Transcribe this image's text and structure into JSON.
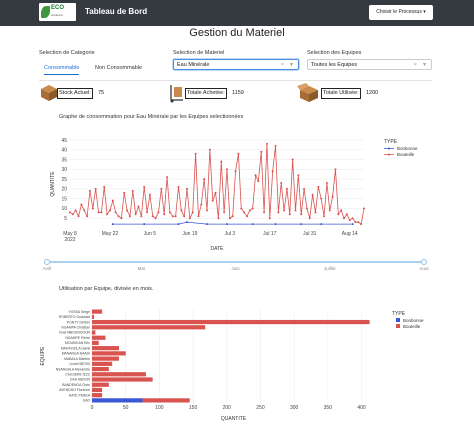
{
  "navbar": {
    "brand": "Tableau de Bord",
    "logo_text": "ECO",
    "logo_subtext": "solutions",
    "process_button": "Choisir le Processus"
  },
  "page_title": "Gestion du Materiel",
  "category": {
    "label": "Selection de Categorie",
    "tabs": [
      "Consommable",
      "Non Consommable"
    ],
    "active_tab": "Consommable"
  },
  "materiel": {
    "label": "Selection de Materiel",
    "value": "Eau Minérale"
  },
  "equipes": {
    "label": "Selection des Equipes",
    "value": "Toutes les Equipes"
  },
  "stats": [
    {
      "label": "Stock Actuel:",
      "value": "75"
    },
    {
      "label": "Totale Achetée:",
      "value": "1159"
    },
    {
      "label": "Totale Utilisée:",
      "value": "1200"
    }
  ],
  "chart_data": [
    {
      "type": "line",
      "title": "Graphe de consommation pour Eau Minérale par les Equipes selectionnées",
      "xlabel": "DATE",
      "ylabel": "QUANTITE",
      "x_tick_labels": [
        "May 8\n2022",
        "May 22",
        "Jun 5",
        "Jun 19",
        "Jul 3",
        "Jul 17",
        "Jul 31",
        "Aug 14"
      ],
      "x_range_days": [
        0,
        103
      ],
      "ylim": [
        0,
        45
      ],
      "y_ticks": [
        5,
        10,
        15,
        20,
        25,
        30,
        35,
        40,
        45
      ],
      "legend_title": "TYPE",
      "legend_position": "right",
      "series": [
        {
          "name": "Bonbonne",
          "color": "#3a57d6",
          "x": [
            15,
            26,
            38,
            41,
            48,
            55,
            64,
            72,
            81,
            88,
            99
          ],
          "y": [
            2,
            2,
            2,
            3,
            2,
            2,
            2,
            2,
            2,
            2,
            2
          ]
        },
        {
          "name": "Bouteille",
          "color": "#d9534f",
          "x": [
            0,
            1,
            2,
            3,
            4,
            5,
            6,
            7,
            8,
            9,
            10,
            11,
            12,
            13,
            14,
            15,
            16,
            17,
            18,
            19,
            20,
            21,
            22,
            23,
            24,
            25,
            26,
            27,
            28,
            29,
            30,
            31,
            32,
            33,
            34,
            35,
            36,
            37,
            38,
            39,
            40,
            41,
            42,
            43,
            44,
            45,
            46,
            47,
            48,
            49,
            50,
            51,
            52,
            53,
            54,
            55,
            56,
            57,
            58,
            59,
            60,
            61,
            62,
            63,
            64,
            65,
            66,
            67,
            68,
            69,
            70,
            71,
            72,
            73,
            74,
            75,
            76,
            77,
            78,
            79,
            80,
            81,
            82,
            83,
            84,
            85,
            86,
            87,
            88,
            89,
            90,
            91,
            92,
            93,
            94,
            95,
            96,
            97,
            98,
            99,
            100,
            101,
            102,
            103
          ],
          "y": [
            8,
            7,
            9,
            6,
            12,
            9,
            6,
            19,
            10,
            20,
            8,
            8,
            21,
            7,
            9,
            14,
            8,
            6,
            5,
            18,
            9,
            6,
            19,
            7,
            11,
            6,
            21,
            8,
            17,
            6,
            5,
            8,
            20,
            7,
            26,
            8,
            6,
            6,
            21,
            9,
            6,
            20,
            5,
            8,
            38,
            6,
            12,
            25,
            9,
            40,
            14,
            18,
            5,
            34,
            8,
            30,
            5,
            6,
            29,
            38,
            10,
            8,
            6,
            9,
            10,
            27,
            24,
            39,
            8,
            43,
            5,
            29,
            42,
            8,
            23,
            9,
            20,
            7,
            35,
            9,
            27,
            7,
            20,
            10,
            5,
            17,
            8,
            21,
            15,
            6,
            23,
            9,
            16,
            30,
            7,
            9,
            5,
            7,
            4,
            5,
            3,
            3,
            2,
            10
          ]
        }
      ]
    },
    {
      "type": "bar",
      "orientation": "horizontal",
      "barmode": "stack",
      "title": "Utilisation par Equipe, divisée en mois.",
      "xlabel": "QUANTITE",
      "ylabel": "EQUIPE",
      "xlim": [
        0,
        420
      ],
      "x_ticks": [
        0,
        50,
        100,
        150,
        200,
        250,
        300,
        350,
        400
      ],
      "legend_title": "TYPE",
      "legend_position": "right",
      "categories": [
        "YOSSA Serge",
        "ROBERTO Guizzard",
        "PONTY Dimbiri",
        "NGAMPA Christian",
        "Noel MBOUNGOUR",
        "NGAMPE Pierre",
        "MOUKIKAN Eric",
        "MAKAYIZILA Hamil",
        "MANANGA NAADI",
        "MABALA Martine",
        "Lionel MESSI",
        "NSANGALA Alexandre",
        "CIGGIERE IEZZ",
        "DAU ABDON",
        "BANDENGA Chris",
        "AVENGHO Florence",
        "HATE PEREA",
        "EAD"
      ],
      "series": [
        {
          "name": "Bonbonne",
          "color": "#3a57d6",
          "values": [
            0,
            0,
            0,
            0,
            0,
            0,
            0,
            0,
            0,
            0,
            0,
            0,
            0,
            0,
            0,
            0,
            0,
            75
          ]
        },
        {
          "name": "Bouteille",
          "color": "#d9534f",
          "values": [
            15,
            3,
            412,
            168,
            5,
            20,
            10,
            40,
            50,
            40,
            30,
            25,
            80,
            90,
            25,
            15,
            15,
            70
          ]
        }
      ]
    }
  ],
  "slider": {
    "labels": [
      "Avril",
      "Mai",
      "Juin",
      "Juillet",
      "Aout"
    ]
  }
}
